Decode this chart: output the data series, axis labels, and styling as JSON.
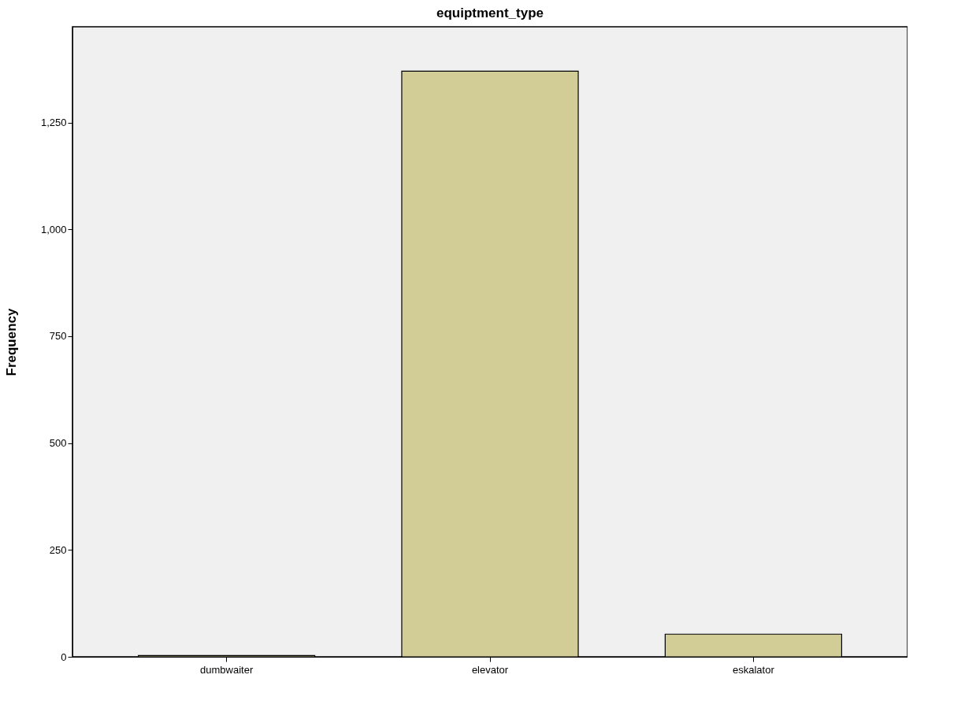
{
  "chart_data": {
    "type": "bar",
    "title": "equiptment_type",
    "ylabel": "Frequency",
    "categories": [
      "dumbwaiter",
      "elevator",
      "eskalator"
    ],
    "values": [
      3,
      1370,
      53
    ],
    "color": "#d2cd96",
    "ylim": [
      0,
      1474
    ],
    "yticks": [
      0,
      250,
      500,
      750,
      {
        "value": 1000,
        "label": "1,000"
      },
      {
        "value": 1250,
        "label": "1,250"
      }
    ],
    "grid": false
  }
}
